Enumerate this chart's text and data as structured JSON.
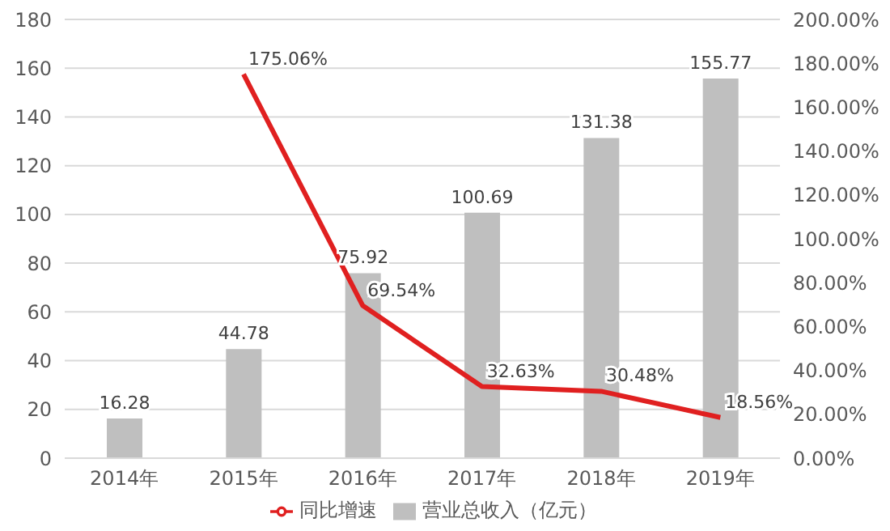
{
  "chart_data": {
    "type": "bar",
    "categories": [
      "2014年",
      "2015年",
      "2016年",
      "2017年",
      "2018年",
      "2019年"
    ],
    "series": [
      {
        "name": "营业总收入（亿元）",
        "color": "#bfbfbf",
        "values": [
          16.28,
          44.78,
          75.92,
          100.69,
          131.38,
          155.77
        ],
        "value_labels": [
          "16.28",
          "44.78",
          "75.92",
          "100.69",
          "131.38",
          "155.77"
        ]
      },
      {
        "name": "同比增速",
        "type": "line",
        "axis": "y2",
        "color": "#e02020",
        "values": [
          null,
          175.06,
          69.54,
          32.63,
          30.48,
          18.56
        ],
        "value_labels": [
          null,
          "175.06%",
          "69.54%",
          "32.63%",
          "30.48%",
          "18.56%"
        ]
      }
    ],
    "ylim": [
      0,
      180
    ],
    "yticks": [
      0,
      20,
      40,
      60,
      80,
      100,
      120,
      140,
      160,
      180
    ],
    "y2lim": [
      0,
      200
    ],
    "y2ticks": [
      {
        "value": 0,
        "label": "0.00%"
      },
      {
        "value": 20,
        "label": "20.00%"
      },
      {
        "value": 40,
        "label": "40.00%"
      },
      {
        "value": 60,
        "label": "60.00%"
      },
      {
        "value": 80,
        "label": "80.00%"
      },
      {
        "value": 100,
        "label": "100.00%"
      },
      {
        "value": 120,
        "label": "120.00%"
      },
      {
        "value": 140,
        "label": "140.00%"
      },
      {
        "value": 160,
        "label": "160.00%"
      },
      {
        "value": 180,
        "label": "180.00%"
      },
      {
        "value": 200,
        "label": "200.00%"
      }
    ],
    "grid": "y",
    "legend": "bottom",
    "marker": "none"
  }
}
